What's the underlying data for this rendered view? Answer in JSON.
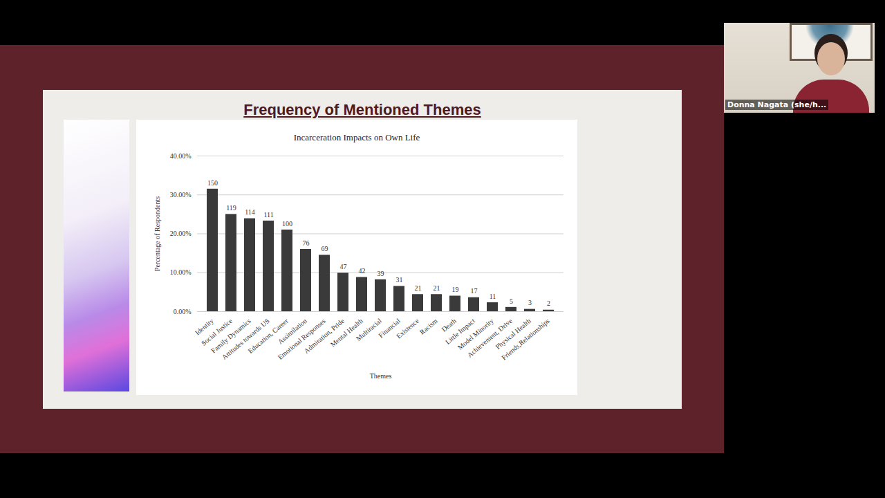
{
  "chart_data": {
    "type": "bar",
    "title": "Frequency of Mentioned Themes",
    "subtitle": "Incarceration Impacts on Own Life",
    "x_label": "Themes",
    "y_label": "Percentage of Respondents",
    "categories": [
      "Identity",
      "Social Justice",
      "Family Dynamics",
      "Attitudes towards US",
      "Education, Career",
      "Assimilation",
      "Emotional Responses",
      "Admiration, Pride",
      "Mental Health",
      "Multiracial",
      "Financial",
      "Existence",
      "Racism",
      "Death",
      "Little Impact",
      "Model Minority",
      "Achievement, Drive",
      "Physical Health",
      "Friends,Relationships"
    ],
    "values": [
      31.5,
      25.0,
      23.9,
      23.3,
      21.0,
      16.0,
      14.5,
      9.9,
      8.8,
      8.2,
      6.5,
      4.4,
      4.4,
      4.0,
      3.6,
      2.3,
      1.1,
      0.6,
      0.4
    ],
    "counts": [
      150,
      119,
      114,
      111,
      100,
      76,
      69,
      47,
      42,
      39,
      31,
      21,
      21,
      19,
      17,
      11,
      5,
      3,
      2
    ],
    "color": "#3a3a3a",
    "ylim": [
      0,
      40
    ],
    "yticks": [
      {
        "value": 0,
        "label": "0.00%"
      },
      {
        "value": 10,
        "label": "10.00%"
      },
      {
        "value": 20,
        "label": "20.00%"
      },
      {
        "value": 30,
        "label": "30.00%"
      },
      {
        "value": 40,
        "label": "40.00%"
      }
    ],
    "grid": true
  },
  "presenter": "Donna Nagata (she/h..."
}
